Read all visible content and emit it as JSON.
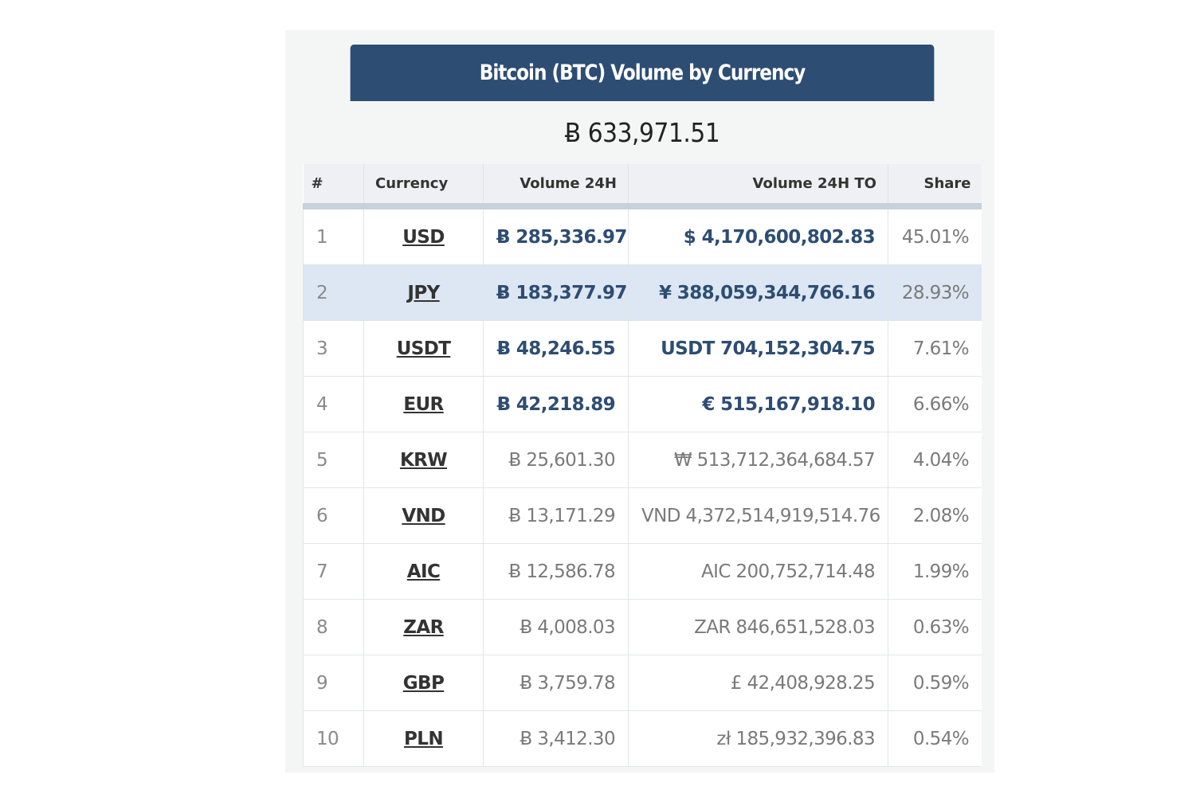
{
  "widget": {
    "title": "Bitcoin (BTC) Volume by Currency",
    "total": "Ƀ 633,971.51"
  },
  "table": {
    "headers": [
      "#",
      "Currency",
      "Volume 24H",
      "Volume 24H TO",
      "Share"
    ],
    "rows": [
      {
        "rank": "1",
        "currency": "USD",
        "volume": "Ƀ 285,336.97",
        "volume_to": "$ 4,170,600,802.83",
        "share": "45.01%",
        "strong": true,
        "highlight": false
      },
      {
        "rank": "2",
        "currency": "JPY",
        "volume": "Ƀ 183,377.97",
        "volume_to": "¥ 388,059,344,766.16",
        "share": "28.93%",
        "strong": true,
        "highlight": true
      },
      {
        "rank": "3",
        "currency": "USDT",
        "volume": "Ƀ 48,246.55",
        "volume_to": "USDT 704,152,304.75",
        "share": "7.61%",
        "strong": true,
        "highlight": false
      },
      {
        "rank": "4",
        "currency": "EUR",
        "volume": "Ƀ 42,218.89",
        "volume_to": "€ 515,167,918.10",
        "share": "6.66%",
        "strong": true,
        "highlight": false
      },
      {
        "rank": "5",
        "currency": "KRW",
        "volume": "Ƀ 25,601.30",
        "volume_to": "₩ 513,712,364,684.57",
        "share": "4.04%",
        "strong": false,
        "highlight": false
      },
      {
        "rank": "6",
        "currency": "VND",
        "volume": "Ƀ 13,171.29",
        "volume_to": "VND 4,372,514,919,514.76",
        "share": "2.08%",
        "strong": false,
        "highlight": false
      },
      {
        "rank": "7",
        "currency": "AIC",
        "volume": "Ƀ 12,586.78",
        "volume_to": "AIC 200,752,714.48",
        "share": "1.99%",
        "strong": false,
        "highlight": false
      },
      {
        "rank": "8",
        "currency": "ZAR",
        "volume": "Ƀ 4,008.03",
        "volume_to": "ZAR 846,651,528.03",
        "share": "0.63%",
        "strong": false,
        "highlight": false
      },
      {
        "rank": "9",
        "currency": "GBP",
        "volume": "Ƀ 3,759.78",
        "volume_to": "£ 42,408,928.25",
        "share": "0.59%",
        "strong": false,
        "highlight": false
      },
      {
        "rank": "10",
        "currency": "PLN",
        "volume": "Ƀ 3,412.30",
        "volume_to": "zł 185,932,396.83",
        "share": "0.54%",
        "strong": false,
        "highlight": false
      }
    ]
  },
  "colors": {
    "header_bg": "#2d4d73",
    "accent_text": "#2d4d73",
    "highlight_row": "#dde7f3"
  }
}
